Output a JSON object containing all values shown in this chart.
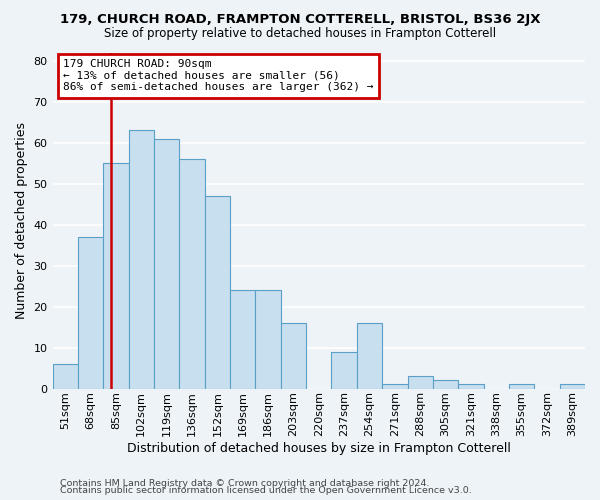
{
  "title1": "179, CHURCH ROAD, FRAMPTON COTTERELL, BRISTOL, BS36 2JX",
  "title2": "Size of property relative to detached houses in Frampton Cotterell",
  "xlabel": "Distribution of detached houses by size in Frampton Cotterell",
  "ylabel": "Number of detached properties",
  "bin_labels": [
    "51sqm",
    "68sqm",
    "85sqm",
    "102sqm",
    "119sqm",
    "136sqm",
    "152sqm",
    "169sqm",
    "186sqm",
    "203sqm",
    "220sqm",
    "237sqm",
    "254sqm",
    "271sqm",
    "288sqm",
    "305sqm",
    "321sqm",
    "338sqm",
    "355sqm",
    "372sqm",
    "389sqm"
  ],
  "bar_heights": [
    6,
    37,
    55,
    63,
    61,
    56,
    47,
    24,
    24,
    16,
    0,
    9,
    16,
    1,
    3,
    2,
    1,
    0,
    1,
    0,
    1
  ],
  "bar_color": "#c8dff0",
  "bar_edge_color": "#5a9fc8",
  "property_line_label": "179 CHURCH ROAD: 90sqm",
  "annotation_line1": "← 13% of detached houses are smaller (56)",
  "annotation_line2": "86% of semi-detached houses are larger (362) →",
  "annotation_box_color": "#ffffff",
  "annotation_box_edge": "#cc0000",
  "vline_color": "#cc0000",
  "vline_x": 2.294,
  "footer1": "Contains HM Land Registry data © Crown copyright and database right 2024.",
  "footer2": "Contains public sector information licensed under the Open Government Licence v3.0.",
  "ylim": [
    0,
    82
  ],
  "background_color": "#eef3f8",
  "plot_background": "#eef3f8",
  "grid_color": "#ffffff",
  "title1_fontsize": 9.5,
  "title2_fontsize": 8.5,
  "ylabel_fontsize": 9,
  "xlabel_fontsize": 9,
  "tick_fontsize": 8,
  "ann_fontsize": 8,
  "footer_fontsize": 6.8
}
